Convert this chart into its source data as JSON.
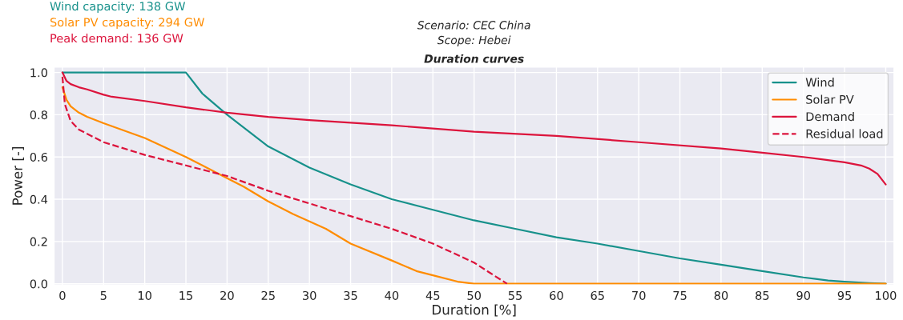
{
  "chart_data": {
    "type": "line",
    "title": "Duration curves",
    "subtitle": "Scenario: CEC China\nScope: Hebei",
    "xlabel": "Duration [%]",
    "ylabel": "Power [-]",
    "annotations": [
      "Wind capacity: 138 GW",
      "Solar PV capacity: 294 GW",
      "Peak demand: 136 GW"
    ],
    "xlim": [
      -1,
      101
    ],
    "xticks": [
      0,
      5,
      10,
      15,
      20,
      25,
      30,
      35,
      40,
      45,
      50,
      55,
      60,
      65,
      70,
      75,
      80,
      85,
      90,
      95,
      100
    ],
    "ylim": [
      -0.005,
      1.025
    ],
    "yticks": [
      {
        "value": 0,
        "label": "0.0"
      },
      {
        "value": 0.2,
        "label": "0.2"
      },
      {
        "value": 0.4,
        "label": "0.4"
      },
      {
        "value": 0.6,
        "label": "0.6"
      },
      {
        "value": 0.8,
        "label": "0.8"
      },
      {
        "value": 1,
        "label": "1.0"
      }
    ],
    "grid": true,
    "legend": "top right",
    "series": [
      {
        "name": "Wind",
        "color": "#17918b",
        "line_style": "solid",
        "x": [
          0,
          15,
          17,
          20,
          25,
          30,
          35,
          40,
          45,
          50,
          55,
          60,
          65,
          70,
          75,
          80,
          85,
          90,
          93,
          95,
          98,
          100
        ],
        "values": [
          1.0,
          1.0,
          0.9,
          0.8,
          0.65,
          0.55,
          0.47,
          0.4,
          0.35,
          0.3,
          0.26,
          0.22,
          0.19,
          0.155,
          0.12,
          0.09,
          0.06,
          0.03,
          0.015,
          0.01,
          0.003,
          0.0
        ]
      },
      {
        "name": "Solar PV",
        "color": "#ff8c00",
        "line_style": "solid",
        "x": [
          0,
          0.5,
          1,
          2,
          3,
          5,
          10,
          15,
          20,
          22,
          25,
          28,
          32,
          35,
          40,
          43,
          45,
          48,
          50,
          100
        ],
        "values": [
          0.93,
          0.87,
          0.84,
          0.81,
          0.79,
          0.76,
          0.69,
          0.6,
          0.5,
          0.46,
          0.39,
          0.33,
          0.26,
          0.19,
          0.11,
          0.06,
          0.04,
          0.01,
          0.0,
          0.0
        ]
      },
      {
        "name": "Demand",
        "color": "#dc143c",
        "line_style": "solid",
        "x": [
          0,
          0.5,
          1,
          2,
          3,
          5,
          6,
          10,
          15,
          20,
          25,
          30,
          40,
          50,
          60,
          70,
          80,
          85,
          90,
          95,
          97,
          98,
          99,
          100
        ],
        "values": [
          1.0,
          0.96,
          0.945,
          0.93,
          0.92,
          0.895,
          0.885,
          0.865,
          0.835,
          0.81,
          0.79,
          0.775,
          0.75,
          0.72,
          0.7,
          0.67,
          0.64,
          0.62,
          0.6,
          0.575,
          0.56,
          0.545,
          0.52,
          0.47
        ]
      },
      {
        "name": "Residual load",
        "color": "#dc143c",
        "line_style": "dashed",
        "x": [
          0,
          0.3,
          1,
          2,
          3,
          5,
          10,
          15,
          20,
          25,
          30,
          35,
          40,
          45,
          50,
          52,
          54
        ],
        "values": [
          0.98,
          0.85,
          0.77,
          0.73,
          0.71,
          0.67,
          0.61,
          0.56,
          0.51,
          0.44,
          0.38,
          0.32,
          0.26,
          0.19,
          0.1,
          0.05,
          0.0
        ]
      }
    ]
  }
}
